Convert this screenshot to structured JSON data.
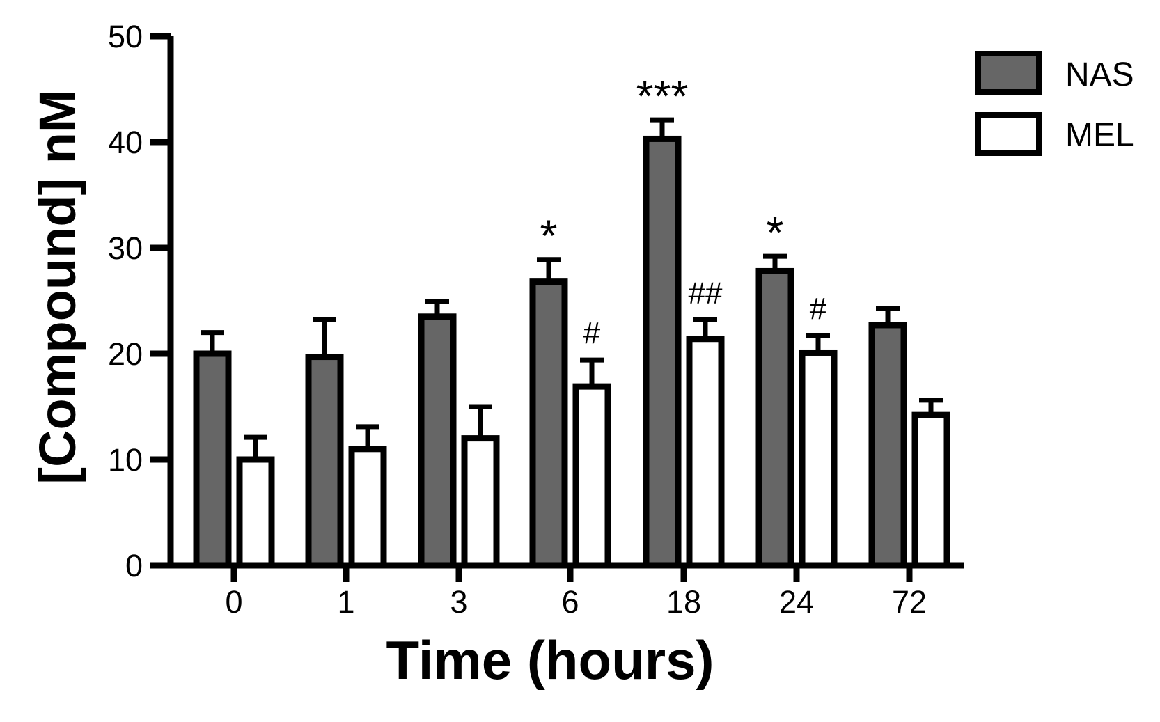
{
  "chart_data": {
    "type": "bar",
    "title": "",
    "xlabel": "Time (hours)",
    "ylabel": "[Compound] nM",
    "categories": [
      "0",
      "1",
      "3",
      "6",
      "18",
      "24",
      "72"
    ],
    "ylim": [
      0,
      50
    ],
    "yticks": [
      "0",
      "10",
      "20",
      "30",
      "40",
      "50"
    ],
    "grid": false,
    "legend_position": "top-right",
    "series": [
      {
        "name": "NAS",
        "color": "#666666",
        "values": [
          20,
          19.7,
          23.5,
          26.8,
          40.3,
          27.8,
          22.7
        ],
        "errors": [
          2.0,
          3.5,
          1.4,
          2.1,
          1.8,
          1.4,
          1.6
        ],
        "annotations": [
          "",
          "",
          "",
          "*",
          "***",
          "*",
          ""
        ]
      },
      {
        "name": "MEL",
        "color": "#ffffff",
        "values": [
          10,
          11,
          12,
          16.9,
          21.4,
          20.1,
          14.2
        ],
        "errors": [
          2.1,
          2.1,
          3.0,
          2.5,
          1.8,
          1.6,
          1.4
        ],
        "annotations": [
          "",
          "",
          "",
          "#",
          "##",
          "#",
          ""
        ]
      }
    ]
  }
}
